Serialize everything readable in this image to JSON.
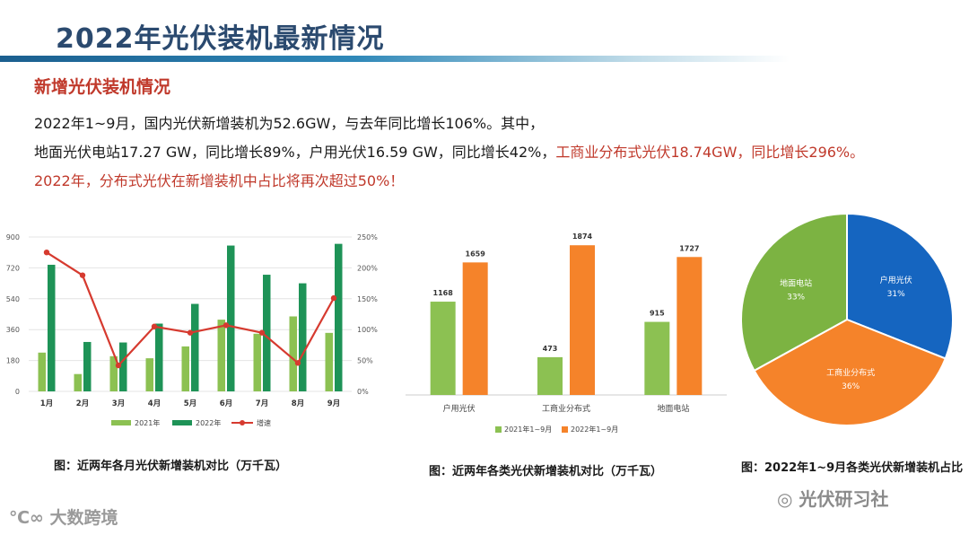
{
  "title": "2022年光伏装机最新情况",
  "subheading": "新增光伏装机情况",
  "paragraph": {
    "line1": "2022年1~9月，国内光伏新增装机为52.6GW，与去年同比增长106%。其中，",
    "line2_normal": "地面光伏电站17.27 GW，同比增长89%，户用光伏16.59 GW，同比增长42%，",
    "line2_red": "工商业分布式光伏18.74GW，同比增长296%。",
    "line3": "2022年，分布式光伏在新增装机中占比将再次超过50%！"
  },
  "colors": {
    "green_light": "#8cc152",
    "green_dark": "#1e9357",
    "red": "#d63a2f",
    "orange": "#f5832a",
    "blue": "#1565c0",
    "pie_green": "#7cb342"
  },
  "chart_data": [
    {
      "type": "bar",
      "title": "图：近两年各月光伏新增装机对比（万千瓦）",
      "categories": [
        "1月",
        "2月",
        "3月",
        "4月",
        "5月",
        "6月",
        "7月",
        "8月",
        "9月"
      ],
      "series": [
        {
          "name": "2021年",
          "type": "bar",
          "values": [
            226,
            101,
            205,
            193,
            262,
            418,
            336,
            437,
            341
          ]
        },
        {
          "name": "2022年",
          "type": "bar",
          "values": [
            738,
            288,
            285,
            395,
            510,
            850,
            680,
            630,
            860
          ]
        },
        {
          "name": "增速",
          "type": "line",
          "axis": "right",
          "values": [
            225,
            188,
            42,
            105,
            95,
            107,
            95,
            46,
            151
          ]
        }
      ],
      "ylim": [
        0,
        900
      ],
      "yticks": [
        "0",
        "180",
        "360",
        "540",
        "720",
        "900"
      ],
      "y2lim": [
        0,
        250
      ],
      "y2ticks": [
        "0%",
        "50%",
        "100%",
        "150%",
        "200%",
        "250%"
      ]
    },
    {
      "type": "bar",
      "title": "图：近两年各类光伏新增装机对比（万千瓦）",
      "categories": [
        "户用光伏",
        "工商业分布式",
        "地面电站"
      ],
      "series": [
        {
          "name": "2021年1~9月",
          "values": [
            1168,
            473,
            915
          ]
        },
        {
          "name": "2022年1~9月",
          "values": [
            1659,
            1874,
            1727
          ]
        }
      ],
      "ylim": [
        0,
        2000
      ]
    },
    {
      "type": "pie",
      "title": "图：2022年1~9月各类光伏新增装机占比",
      "labels": [
        "户用光伏",
        "工商业分布式",
        "地面电站"
      ],
      "values": [
        31,
        36,
        33
      ],
      "value_labels": [
        "31%",
        "36%",
        "33%"
      ]
    }
  ],
  "watermarks": {
    "left": "大数跨境",
    "right": "光伏研习社"
  }
}
